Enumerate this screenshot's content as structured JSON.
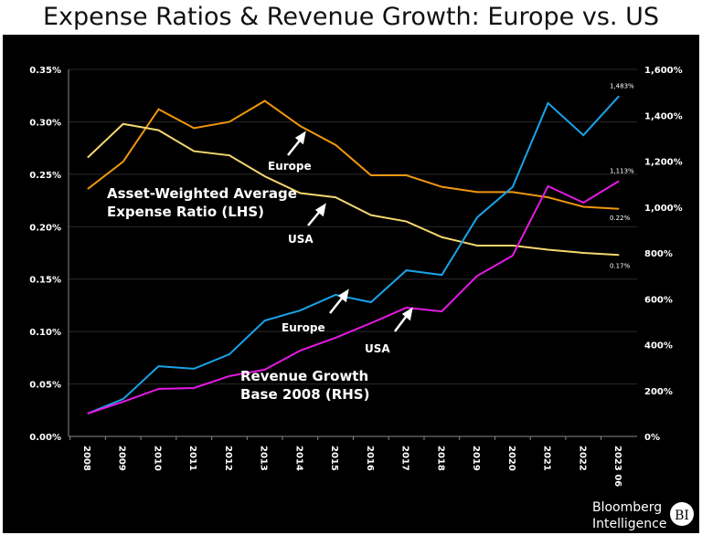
{
  "title": "Expense Ratios & Revenue Growth: Europe vs. US",
  "chart_data": {
    "type": "line",
    "title": "Expense Ratios & Revenue Growth: Europe vs. US",
    "categories": [
      "2008",
      "2009",
      "2010",
      "2011",
      "2012",
      "2013",
      "2014",
      "2015",
      "2016",
      "2017",
      "2018",
      "2019",
      "2020",
      "2021",
      "2022",
      "2023 06"
    ],
    "left_axis": {
      "range": [
        0,
        0.35
      ],
      "unit": "%",
      "ticks": [
        "0.00%",
        "0.05%",
        "0.10%",
        "0.15%",
        "0.20%",
        "0.25%",
        "0.30%",
        "0.35%"
      ]
    },
    "right_axis": {
      "range": [
        0,
        1600
      ],
      "unit": "%",
      "ticks": [
        "0%",
        "200%",
        "400%",
        "600%",
        "800%",
        "1,000%",
        "1,200%",
        "1,400%",
        "1,600%"
      ]
    },
    "grid": true,
    "series": [
      {
        "group": "Asset-Weighted Average Expense Ratio (LHS)",
        "name": "Europe",
        "axis": "left",
        "color": "#f0960f",
        "values": [
          0.236,
          0.262,
          0.312,
          0.294,
          0.3,
          0.32,
          0.296,
          0.278,
          0.249,
          0.249,
          0.238,
          0.233,
          0.233,
          0.228,
          0.219,
          0.217
        ],
        "end_label": "0.22%"
      },
      {
        "group": "Asset-Weighted Average Expense Ratio (LHS)",
        "name": "USA",
        "axis": "left",
        "color": "#f5d76e",
        "values": [
          0.266,
          0.298,
          0.292,
          0.272,
          0.268,
          0.248,
          0.232,
          0.228,
          0.211,
          0.205,
          0.19,
          0.182,
          0.182,
          0.178,
          0.175,
          0.173
        ],
        "end_label": "0.17%"
      },
      {
        "group": "Revenue Growth Base 2008 (RHS)",
        "name": "Europe",
        "axis": "right",
        "color": "#1aa3e8",
        "values": [
          100,
          163,
          306,
          295,
          358,
          505,
          549,
          617,
          585,
          724,
          704,
          955,
          1087,
          1453,
          1313,
          1483
        ],
        "end_label": "1,483%"
      },
      {
        "group": "Revenue Growth Base 2008 (RHS)",
        "name": "USA",
        "axis": "right",
        "color": "#e619e6",
        "values": [
          100,
          151,
          207,
          211,
          263,
          291,
          374,
          430,
          494,
          561,
          545,
          700,
          788,
          1091,
          1019,
          1113
        ],
        "end_label": "1,113%"
      }
    ],
    "annotations": {
      "expense_label_1": "Asset-Weighted Average",
      "expense_label_2": "Expense Ratio (LHS)",
      "revenue_label_1": "Revenue Growth",
      "revenue_label_2": "Base 2008 (RHS)",
      "europe": "Europe",
      "usa": "USA"
    }
  },
  "logo": {
    "line1": "Bloomberg",
    "line2": "Intelligence",
    "badge": "BI"
  }
}
